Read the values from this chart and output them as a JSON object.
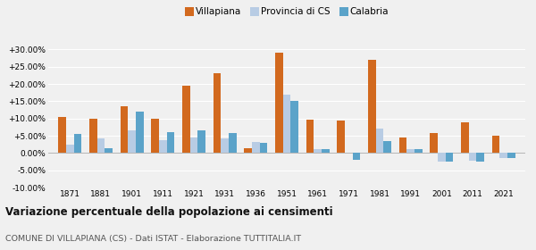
{
  "years": [
    1871,
    1881,
    1901,
    1911,
    1921,
    1931,
    1936,
    1951,
    1961,
    1971,
    1981,
    1991,
    2001,
    2011,
    2021
  ],
  "villapiana": [
    10.5,
    9.8,
    13.5,
    10.0,
    19.5,
    23.0,
    1.5,
    29.0,
    9.7,
    9.3,
    27.0,
    4.5,
    5.8,
    8.8,
    5.0
  ],
  "provincia_cs": [
    2.5,
    4.2,
    6.5,
    3.8,
    4.5,
    4.2,
    3.2,
    17.0,
    1.2,
    0.0,
    7.0,
    1.0,
    -2.5,
    -2.2,
    -1.5
  ],
  "calabria": [
    5.5,
    1.5,
    12.0,
    6.0,
    6.5,
    5.8,
    3.0,
    15.0,
    1.0,
    -2.0,
    3.5,
    1.0,
    -2.5,
    -2.5,
    -1.5
  ],
  "villapiana_color": "#d2691e",
  "provincia_cs_color": "#b8cce4",
  "calabria_color": "#5ba3c9",
  "title": "Variazione percentuale della popolazione ai censimenti",
  "subtitle": "COMUNE DI VILLAPIANA (CS) - Dati ISTAT - Elaborazione TUTTITALIA.IT",
  "legend_labels": [
    "Villapiana",
    "Provincia di CS",
    "Calabria"
  ],
  "ylim": [
    -10.0,
    32.0
  ],
  "yticks": [
    -10.0,
    -5.0,
    0.0,
    5.0,
    10.0,
    15.0,
    20.0,
    25.0,
    30.0
  ],
  "bg_color": "#f0f0f0",
  "grid_color": "#ffffff",
  "bar_width": 0.25
}
